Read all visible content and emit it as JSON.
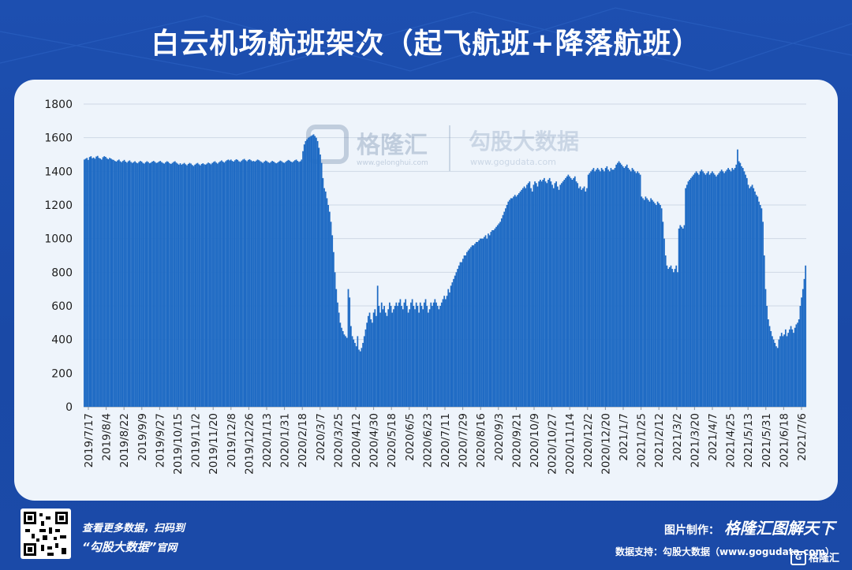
{
  "title": "白云机场航班架次（起飞航班+降落航班）",
  "watermark": {
    "left_brand": "格隆汇",
    "left_url": "www.gelonghui.com",
    "right_brand": "勾股大数据",
    "right_url": "www.gogudata.com"
  },
  "footer": {
    "scan_line1": "查看更多数据，扫码到",
    "scan_line2_brand": "“勾股大数据”",
    "scan_line2_suffix": "官网",
    "credit_label": "图片制作：",
    "credit_brand": "格隆汇图解天下",
    "support_line": "数据支持：勾股大数据（www.gogudata.com）",
    "corner_logo": "格隆汇"
  },
  "colors": {
    "bar": "#1f6bc4",
    "background": "#1d4fb0",
    "panel": "#eef4fb",
    "grid": "#cfd9e6"
  },
  "chart_data": {
    "type": "bar",
    "title": "白云机场航班架次（起飞航班+降落航班）",
    "xlabel": "",
    "ylabel": "",
    "ylim": [
      0,
      1800
    ],
    "yticks": [
      0,
      200,
      400,
      600,
      800,
      1000,
      1200,
      1400,
      1600,
      1800
    ],
    "grid": true,
    "legend": "none",
    "x_tick_labels": [
      "2019/7/17",
      "2019/8/4",
      "2019/8/22",
      "2019/9/9",
      "2019/9/27",
      "2019/10/15",
      "2019/11/2",
      "2019/11/20",
      "2019/12/8",
      "2019/12/26",
      "2020/1/13",
      "2020/1/31",
      "2020/2/18",
      "2020/3/7",
      "2020/3/25",
      "2020/4/12",
      "2020/4/30",
      "2020/5/18",
      "2020/6/5",
      "2020/6/23",
      "2020/7/11",
      "2020/7/29",
      "2020/8/16",
      "2020/9/3",
      "2020/9/21",
      "2020/10/9",
      "2020/10/27",
      "2020/11/14",
      "2020/12/2",
      "2020/12/20",
      "2021/1/7",
      "2021/1/25",
      "2021/2/12",
      "2021/3/2",
      "2021/3/20",
      "2021/4/7",
      "2021/4/25",
      "2021/5/13",
      "2021/5/31",
      "2021/6/18",
      "2021/7/6"
    ],
    "start_date": "2019/7/17",
    "end_date": "2021/7/6",
    "daily_values_by_period": [
      [
        1470,
        1475,
        1480,
        1468,
        1485,
        1490,
        1478,
        1482,
        1475,
        1488,
        1492,
        1480,
        1476,
        1470,
        1484,
        1490,
        1486,
        1478,
        1472
      ],
      [
        1480,
        1476,
        1470,
        1468,
        1462,
        1458,
        1465,
        1470,
        1460,
        1455,
        1462,
        1468,
        1458,
        1452,
        1460,
        1465,
        1456,
        1450
      ],
      [
        1455,
        1460,
        1452,
        1448,
        1456,
        1462,
        1458,
        1450,
        1446,
        1454,
        1460,
        1455,
        1448,
        1452,
        1458,
        1462,
        1456,
        1450
      ],
      [
        1452,
        1458,
        1462,
        1455,
        1450,
        1446,
        1454,
        1460,
        1456,
        1448,
        1444,
        1450,
        1456,
        1460,
        1452,
        1446,
        1440,
        1448
      ],
      [
        1440,
        1445,
        1450,
        1442,
        1436,
        1444,
        1450,
        1446,
        1438,
        1432,
        1440,
        1446,
        1450,
        1442,
        1436,
        1444,
        1448,
        1442
      ],
      [
        1440,
        1446,
        1452,
        1448,
        1442,
        1450,
        1456,
        1460,
        1452,
        1446,
        1454,
        1460,
        1465,
        1458,
        1452,
        1460,
        1466,
        1470
      ],
      [
        1465,
        1470,
        1462,
        1458,
        1466,
        1472,
        1468,
        1460,
        1456,
        1464,
        1470,
        1474,
        1466,
        1460,
        1468,
        1472,
        1466,
        1460
      ],
      [
        1462,
        1458,
        1464,
        1470,
        1466,
        1460,
        1456,
        1450,
        1458,
        1464,
        1460,
        1454,
        1450,
        1456,
        1462,
        1458,
        1452,
        1448
      ],
      [
        1452,
        1458,
        1464,
        1460,
        1454,
        1450,
        1456,
        1462,
        1468,
        1464,
        1458,
        1454,
        1460,
        1466,
        1470,
        1462,
        1456,
        1460
      ],
      [
        1470,
        1520,
        1560,
        1580,
        1590,
        1600,
        1605,
        1610,
        1615,
        1620,
        1610,
        1600,
        1580,
        1540,
        1500,
        1450,
        1360,
        1300
      ],
      [
        1280,
        1240,
        1200,
        1160,
        1100,
        1020,
        920,
        800,
        700,
        620,
        560,
        500,
        470,
        450,
        430,
        420,
        410,
        700
      ],
      [
        650,
        480,
        420,
        400,
        380,
        360,
        420,
        340,
        330,
        350,
        380,
        420,
        460,
        500,
        540,
        560,
        520,
        500
      ],
      [
        560,
        580,
        540,
        720,
        600,
        560,
        620,
        580,
        600,
        560,
        540,
        580,
        620,
        600,
        560,
        580,
        600,
        620
      ],
      [
        600,
        620,
        640,
        600,
        580,
        620,
        640,
        600,
        560,
        580,
        620,
        640,
        600,
        580,
        620,
        600,
        560,
        620
      ],
      [
        600,
        580,
        620,
        640,
        600,
        560,
        580,
        620,
        600,
        620,
        640,
        620,
        600,
        580,
        600,
        620,
        640,
        660
      ],
      [
        640,
        660,
        700,
        680,
        720,
        740,
        760,
        780,
        800,
        820,
        840,
        860,
        860,
        880,
        900,
        900,
        920,
        930
      ],
      [
        940,
        950,
        960,
        960,
        970,
        980,
        980,
        990,
        1000,
        1000,
        1000,
        1010,
        1020,
        1000,
        1030,
        1020,
        1040,
        1050
      ],
      [
        1050,
        1060,
        1070,
        1080,
        1090,
        1100,
        1120,
        1140,
        1160,
        1180,
        1200,
        1220,
        1230,
        1240,
        1240,
        1250,
        1260,
        1250
      ],
      [
        1260,
        1270,
        1280,
        1290,
        1300,
        1310,
        1300,
        1320,
        1330,
        1340,
        1300,
        1280,
        1320,
        1340,
        1330,
        1310,
        1340,
        1350
      ],
      [
        1340,
        1350,
        1360,
        1340,
        1330,
        1350,
        1360,
        1340,
        1320,
        1300,
        1330,
        1340,
        1310,
        1290,
        1320,
        1330,
        1340,
        1350
      ],
      [
        1360,
        1370,
        1380,
        1370,
        1360,
        1350,
        1360,
        1370,
        1340,
        1330,
        1300,
        1310,
        1290,
        1300,
        1310,
        1280,
        1300,
        1380
      ],
      [
        1390,
        1400,
        1410,
        1420,
        1400,
        1410,
        1420,
        1410,
        1400,
        1420,
        1410,
        1400,
        1420,
        1430,
        1410,
        1400,
        1420,
        1410
      ],
      [
        1410,
        1420,
        1440,
        1450,
        1460,
        1450,
        1440,
        1430,
        1420,
        1430,
        1440,
        1420,
        1410,
        1400,
        1420,
        1410,
        1400,
        1390
      ],
      [
        1400,
        1390,
        1380,
        1250,
        1240,
        1230,
        1250,
        1240,
        1230,
        1220,
        1240,
        1230,
        1220,
        1210,
        1200,
        1220,
        1210,
        1200
      ],
      [
        1180,
        1100,
        1000,
        900,
        840,
        820,
        830,
        840,
        820,
        800,
        820,
        840,
        800,
        1060,
        1080,
        1070,
        1060,
        1080
      ],
      [
        1300,
        1320,
        1340,
        1350,
        1360,
        1370,
        1380,
        1390,
        1400,
        1390,
        1380,
        1400,
        1410,
        1400,
        1390,
        1380,
        1390,
        1400
      ],
      [
        1380,
        1390,
        1400,
        1390,
        1380,
        1370,
        1380,
        1390,
        1400,
        1410,
        1400,
        1390,
        1400,
        1410,
        1420,
        1410,
        1400,
        1420
      ],
      [
        1410,
        1420,
        1440,
        1530,
        1460,
        1450,
        1430,
        1420,
        1400,
        1380,
        1360,
        1320,
        1300,
        1310,
        1320,
        1300,
        1280,
        1260
      ],
      [
        1250,
        1220,
        1200,
        1180,
        1100,
        900,
        700,
        600,
        520,
        480,
        450,
        420,
        400,
        380,
        360,
        350,
        400,
        420
      ],
      [
        440,
        420,
        430,
        460,
        420,
        440,
        460,
        480,
        460,
        440,
        470,
        490,
        500,
        520,
        600,
        650,
        700,
        760,
        840
      ]
    ]
  }
}
